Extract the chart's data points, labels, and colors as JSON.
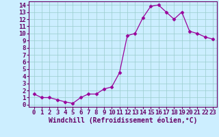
{
  "x": [
    0,
    1,
    2,
    3,
    4,
    5,
    6,
    7,
    8,
    9,
    10,
    11,
    12,
    13,
    14,
    15,
    16,
    17,
    18,
    19,
    20,
    21,
    22,
    23
  ],
  "y": [
    1.5,
    1.0,
    1.0,
    0.7,
    0.4,
    0.2,
    1.0,
    1.5,
    1.5,
    2.2,
    2.5,
    4.5,
    9.7,
    10.0,
    12.2,
    13.8,
    14.0,
    13.0,
    12.0,
    13.0,
    10.3,
    10.0,
    9.5,
    9.2
  ],
  "line_color": "#990099",
  "marker": "D",
  "marker_size": 2.5,
  "bg_color": "#cceeff",
  "grid_color": "#99cccc",
  "ylabel_values": [
    0,
    1,
    2,
    3,
    4,
    5,
    6,
    7,
    8,
    9,
    10,
    11,
    12,
    13,
    14
  ],
  "xlabel_values": [
    0,
    1,
    2,
    3,
    4,
    5,
    6,
    7,
    8,
    9,
    10,
    11,
    12,
    13,
    14,
    15,
    16,
    17,
    18,
    19,
    20,
    21,
    22,
    23
  ],
  "xlabel": "Windchill (Refroidissement éolien,°C)",
  "ylim": [
    -0.3,
    14.5
  ],
  "xlim": [
    -0.7,
    23.5
  ],
  "tick_fontsize": 6.5,
  "label_fontsize": 7.0,
  "axis_color": "#660066",
  "spine_color": "#660066"
}
